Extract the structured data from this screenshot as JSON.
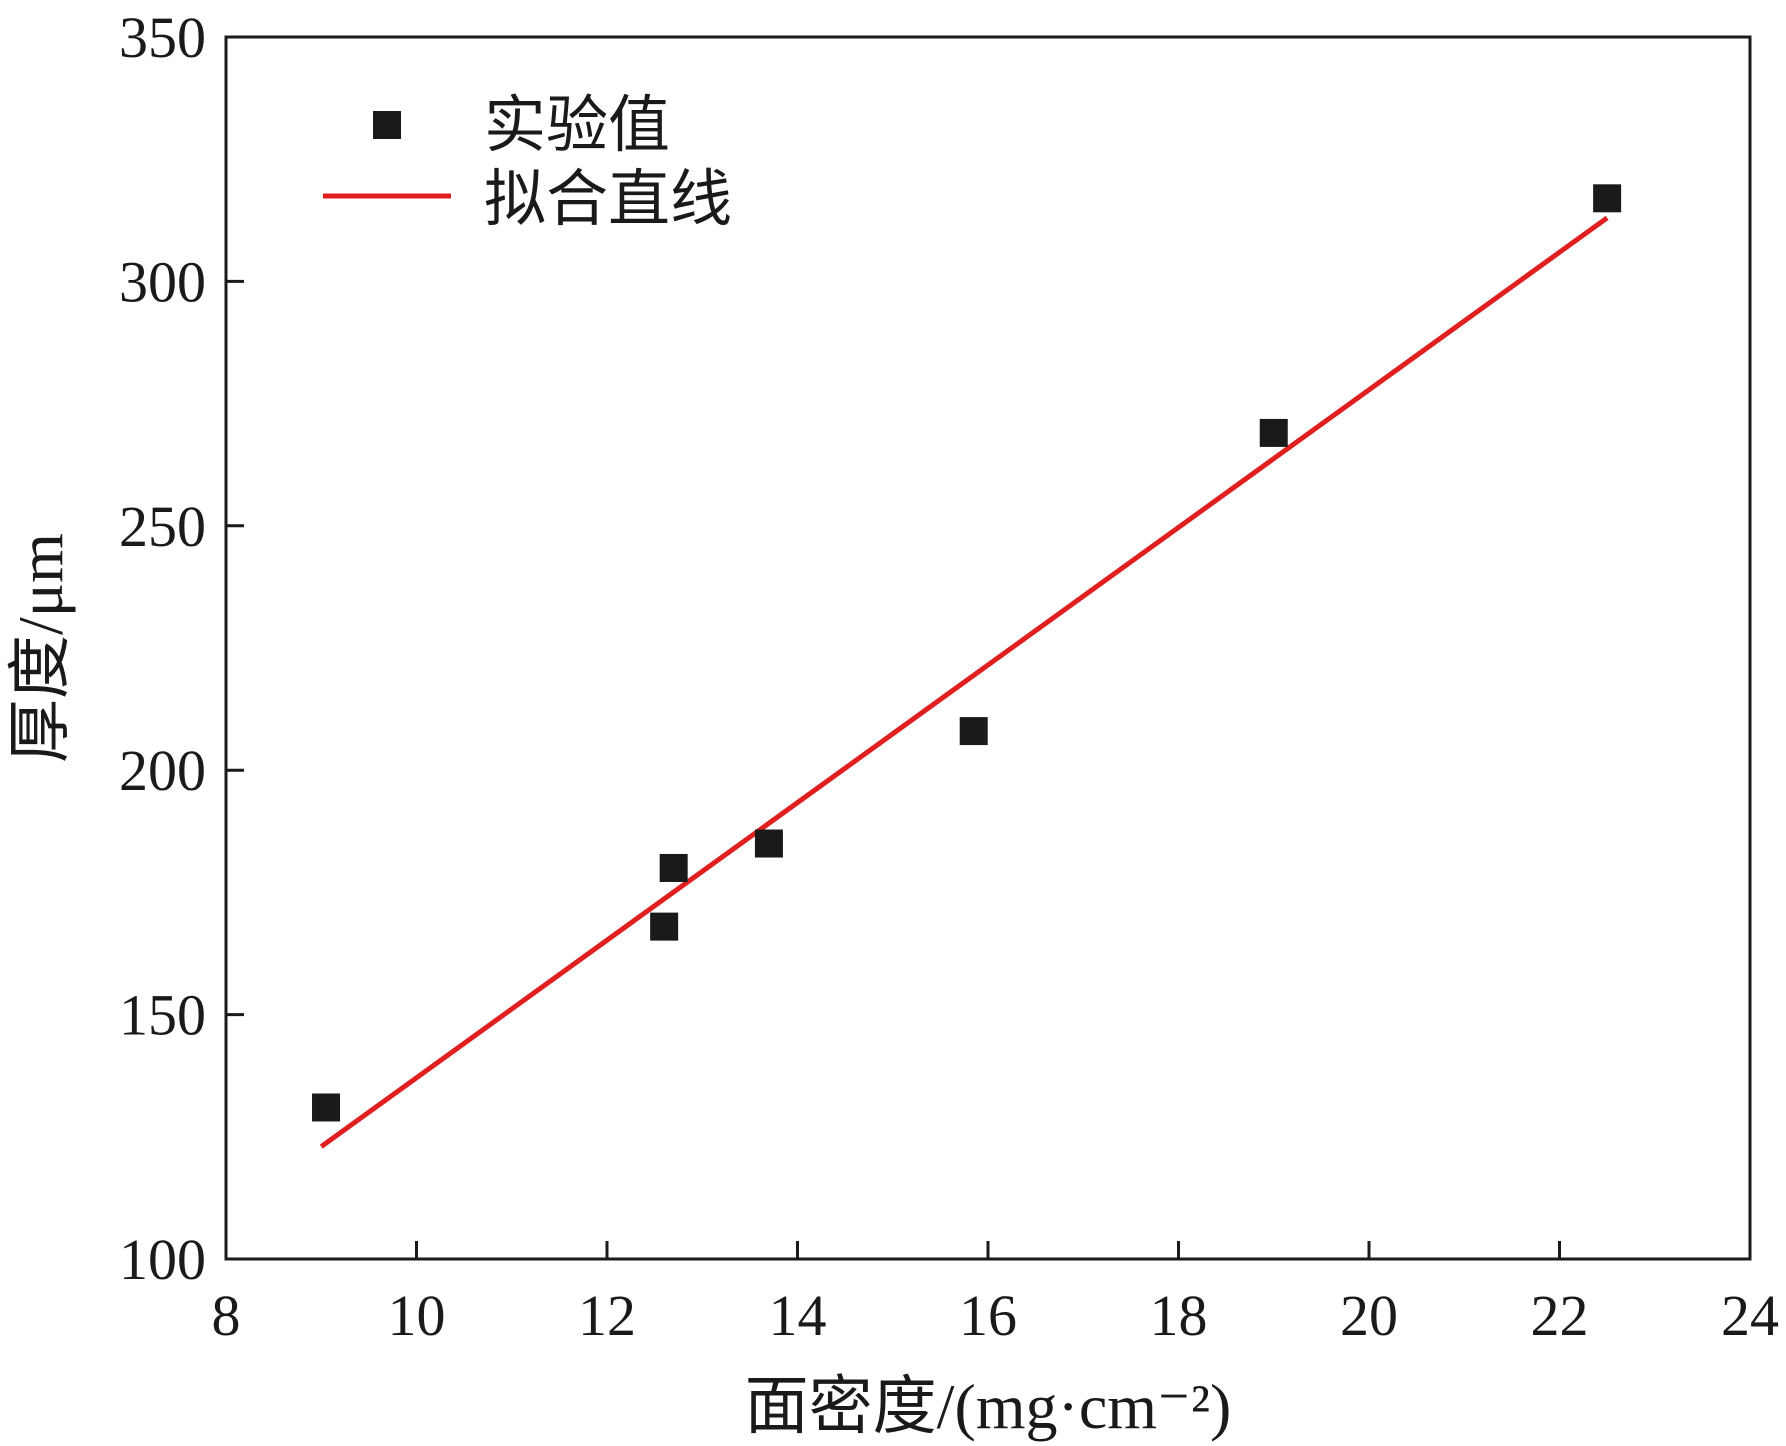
{
  "chart_data": {
    "type": "scatter",
    "xlabel": "面密度/(mg·cm⁻²)",
    "ylabel": "厚度/μm",
    "xlim": [
      8,
      24
    ],
    "ylim": [
      100,
      350
    ],
    "x_ticks": [
      8,
      10,
      12,
      14,
      16,
      18,
      20,
      22,
      24
    ],
    "y_ticks": [
      100,
      150,
      200,
      250,
      300,
      350
    ],
    "grid": false,
    "legend_position": "top-left",
    "series": [
      {
        "name": "实验值",
        "kind": "scatter",
        "marker": "square",
        "color": "#1a1a1a",
        "points": [
          {
            "x": 9.05,
            "y": 131
          },
          {
            "x": 12.6,
            "y": 168
          },
          {
            "x": 12.7,
            "y": 180
          },
          {
            "x": 13.7,
            "y": 185
          },
          {
            "x": 15.85,
            "y": 208
          },
          {
            "x": 19.0,
            "y": 269
          },
          {
            "x": 22.5,
            "y": 317
          }
        ]
      },
      {
        "name": "拟合直线",
        "kind": "line",
        "color": "#e02020",
        "points": [
          {
            "x": 9.0,
            "y": 123
          },
          {
            "x": 22.5,
            "y": 313
          }
        ]
      }
    ]
  }
}
